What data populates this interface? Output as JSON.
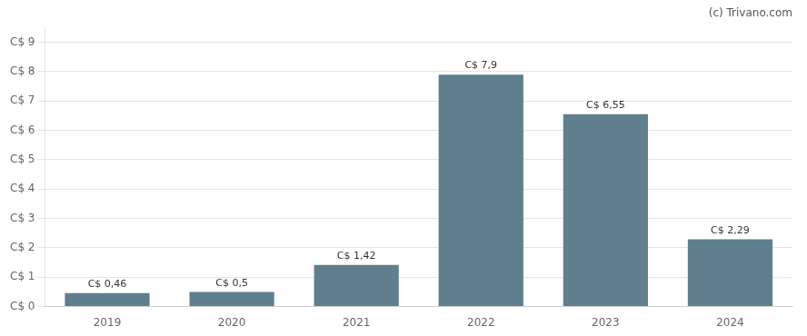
{
  "chart_data": {
    "type": "bar",
    "categories": [
      "2019",
      "2020",
      "2021",
      "2022",
      "2023",
      "2024"
    ],
    "values": [
      0.46,
      0.5,
      1.42,
      7.9,
      6.55,
      2.29
    ],
    "value_labels": [
      "C$ 0,46",
      "C$ 0,5",
      "C$ 1,42",
      "C$ 7,9",
      "C$ 6,55",
      "C$ 2,29"
    ],
    "data_labels": true,
    "color": "#5f7f8f",
    "ylim": [
      0,
      9.5
    ],
    "yticks": [
      {
        "value": 0,
        "label": "C$ 0"
      },
      {
        "value": 1,
        "label": "C$ 1"
      },
      {
        "value": 2,
        "label": "C$ 2"
      },
      {
        "value": 3,
        "label": "C$ 3"
      },
      {
        "value": 4,
        "label": "C$ 4"
      },
      {
        "value": 5,
        "label": "C$ 5"
      },
      {
        "value": 6,
        "label": "C$ 6"
      },
      {
        "value": 7,
        "label": "C$ 7"
      },
      {
        "value": 8,
        "label": "C$ 8"
      },
      {
        "value": 9,
        "label": "C$ 9"
      }
    ],
    "grid": true,
    "annotation": "(c) Trivano.com"
  }
}
